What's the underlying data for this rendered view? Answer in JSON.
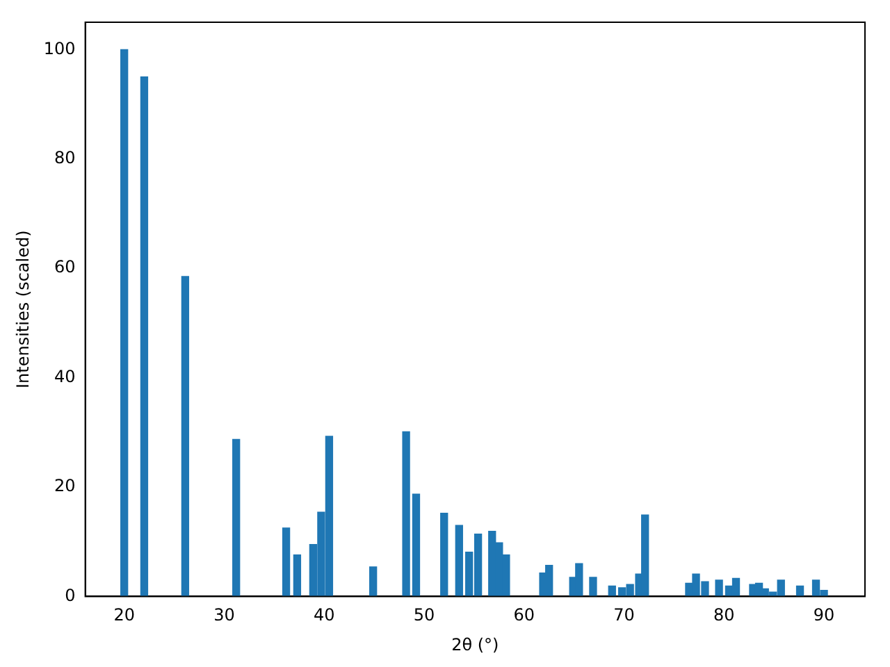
{
  "chart_data": {
    "type": "bar",
    "xlabel": "2θ (°)",
    "ylabel": "Intensities (scaled)",
    "x": [
      20.0,
      22.0,
      26.1,
      31.2,
      36.2,
      37.3,
      38.9,
      39.7,
      40.5,
      44.9,
      48.2,
      49.2,
      52.0,
      53.5,
      54.5,
      55.4,
      56.8,
      57.5,
      58.2,
      61.9,
      62.5,
      64.9,
      65.5,
      66.9,
      68.8,
      69.8,
      70.6,
      71.5,
      72.1,
      76.5,
      77.2,
      78.1,
      79.5,
      80.5,
      81.2,
      82.9,
      83.5,
      84.1,
      84.9,
      85.7,
      87.6,
      89.2,
      90.0
    ],
    "values": [
      100,
      95,
      58.5,
      28.7,
      12.5,
      7.6,
      9.5,
      15.4,
      29.3,
      5.4,
      30.1,
      18.7,
      15.2,
      13.0,
      8.1,
      11.4,
      11.9,
      9.8,
      7.6,
      4.3,
      5.7,
      3.5,
      6.0,
      3.5,
      1.9,
      1.6,
      2.2,
      4.1,
      14.9,
      2.4,
      4.1,
      2.7,
      3.0,
      1.9,
      3.3,
      2.2,
      2.4,
      1.4,
      0.8,
      3.0,
      1.9,
      3.0,
      1.1
    ],
    "color": "#1f77b4",
    "xlim": [
      16.1,
      94.1
    ],
    "xticks": [
      20,
      30,
      40,
      50,
      60,
      70,
      80,
      90
    ],
    "ylim": [
      0,
      105
    ],
    "yticks": [
      0,
      20,
      40,
      60,
      80,
      100
    ]
  }
}
